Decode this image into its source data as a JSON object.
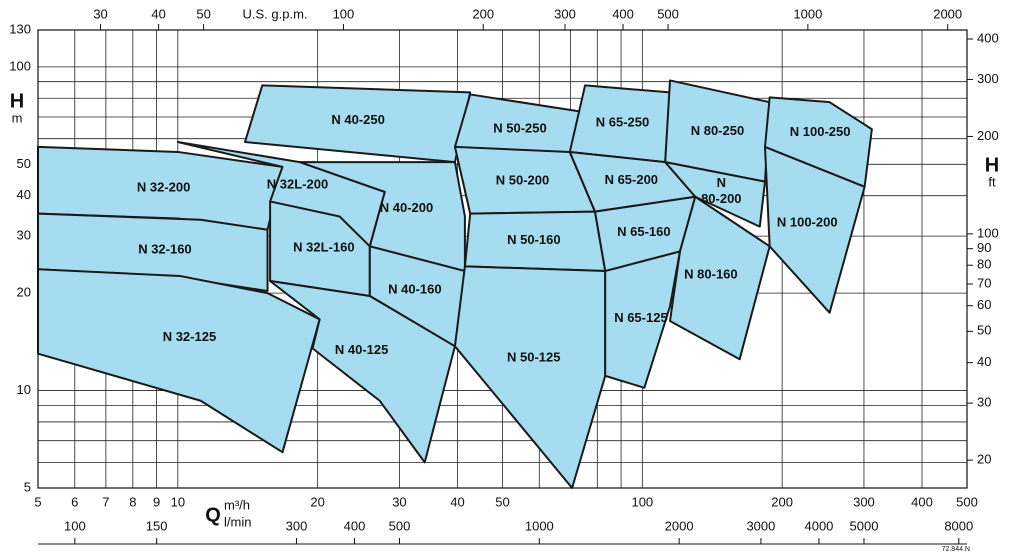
{
  "chart_data": {
    "type": "region",
    "xlabel": "Q",
    "xunit": "m³/h",
    "ylabel": "H",
    "yunit": "m",
    "y2label": "H",
    "y2unit": "ft",
    "log": true,
    "grid": true,
    "color": "#a6dcef",
    "xlim": [
      5,
      500
    ],
    "ylim": [
      5,
      130
    ],
    "xticks": [
      5,
      6,
      7,
      8,
      9,
      10,
      20,
      30,
      40,
      50,
      100,
      200,
      300,
      400,
      500
    ],
    "xminor": [
      60,
      70,
      80,
      90
    ],
    "yticks": [
      5,
      10,
      20,
      30,
      40,
      50,
      100,
      130
    ],
    "yminor": [
      6,
      7,
      8,
      9,
      60,
      70,
      80,
      90
    ],
    "y2lim": [
      16.4,
      426.5
    ],
    "y2ticks": [
      20,
      30,
      40,
      50,
      60,
      70,
      80,
      90,
      100,
      200,
      300,
      400
    ],
    "top_axis": {
      "label": "U.S. g.p.m.",
      "xlim": [
        22.0,
        2201
      ],
      "xticks": [
        30,
        40,
        50,
        100,
        200,
        300,
        400,
        500,
        1000,
        2000
      ]
    },
    "bottom2_axis": {
      "label": "l/min",
      "xlim": [
        83.3,
        8333
      ],
      "xticks": [
        100,
        150,
        300,
        400,
        500,
        1000,
        2000,
        3000,
        4000,
        5000,
        8000
      ]
    },
    "footnote": "72.844.N",
    "series": [
      {
        "name": "N 40-250",
        "x": [
          15.2,
          42.6,
          39.5,
          13.95
        ],
        "values": [
          87.7,
          83.4,
          50.8,
          58.6
        ]
      },
      {
        "name": "N 50-250",
        "x": [
          42.6,
          75.3,
          69.8,
          39.5
        ],
        "values": [
          82.2,
          72.4,
          50.8,
          56.6
        ]
      },
      {
        "name": "N 65-250",
        "x": [
          75.3,
          114.7,
          112,
          69.8
        ],
        "values": [
          87.7,
          83.4,
          50.8,
          54.6
        ]
      },
      {
        "name": "N 80-250",
        "x": [
          114.7,
          188,
          183.7,
          112
        ],
        "values": [
          90.8,
          77.8,
          44.2,
          50.8
        ]
      },
      {
        "name": "N 100-250",
        "x": [
          188,
          253,
          312,
          301,
          183.7
        ],
        "values": [
          80.5,
          77.8,
          64.2,
          42.6,
          56.6
        ]
      },
      {
        "name": "N 32-200",
        "x": [
          5,
          10,
          16.8,
          15.6,
          10,
          5
        ],
        "values": [
          56.6,
          54.6,
          49.1,
          31.4,
          34.0,
          35.2
        ]
      },
      {
        "name": "N 32L-200",
        "x": [
          10,
          18.3,
          27.9,
          25.9,
          15.8,
          16.8
        ],
        "values": [
          58.6,
          50.8,
          41.1,
          27.9,
          38.4,
          49.1
        ]
      },
      {
        "name": "N 40-200",
        "x": [
          18.3,
          39.5,
          41.5,
          41.5,
          25.9,
          27.9
        ],
        "values": [
          50.8,
          50.8,
          34.5,
          23.4,
          27.9,
          41.1
        ]
      },
      {
        "name": "N 50-200",
        "x": [
          39.5,
          69.8,
          79.1,
          42.6
        ],
        "values": [
          56.6,
          54.6,
          35.7,
          35.2
        ]
      },
      {
        "name": "N 65-200",
        "x": [
          69.8,
          112,
          130,
          79.1
        ],
        "values": [
          54.6,
          50.8,
          39.7,
          35.7
        ]
      },
      {
        "name": "N\n80-200",
        "x": [
          112,
          183.7,
          179,
          130
        ],
        "values": [
          50.8,
          44.2,
          32.1,
          39.7
        ]
      },
      {
        "name": "N 100-200",
        "x": [
          183.7,
          301,
          253,
          188
        ],
        "values": [
          56.6,
          42.6,
          17.4,
          27.9
        ]
      },
      {
        "name": "N 32-160",
        "x": [
          5,
          11.2,
          15.6,
          15.6,
          10,
          5
        ],
        "values": [
          35.2,
          33.7,
          31.4,
          20.3,
          22.4,
          23.7
        ]
      },
      {
        "name": "N 32L-160",
        "x": [
          15.8,
          22.3,
          25.9,
          25.9,
          15.8
        ],
        "values": [
          38.4,
          34.5,
          27.9,
          19.6,
          21.8
        ]
      },
      {
        "name": "N 40-160",
        "x": [
          25.9,
          41.5,
          39.5,
          25.9
        ],
        "values": [
          27.9,
          23.4,
          13.7,
          19.6
        ]
      },
      {
        "name": "N 50-160",
        "x": [
          42.6,
          79.1,
          83.2,
          41.5
        ],
        "values": [
          35.2,
          35.7,
          23.4,
          24.2
        ]
      },
      {
        "name": "N 65-160",
        "x": [
          79.1,
          130,
          120.5,
          83.2
        ],
        "values": [
          35.7,
          39.7,
          26.9,
          23.4
        ]
      },
      {
        "name": "N 80-160",
        "x": [
          130,
          188,
          162,
          114.7,
          120.5
        ],
        "values": [
          39.7,
          27.9,
          12.5,
          16.4,
          26.9
        ]
      },
      {
        "name": "N 32-125",
        "x": [
          5,
          10.1,
          15.6,
          20.2,
          16.8,
          11.2,
          5
        ],
        "values": [
          23.7,
          22.6,
          20.0,
          16.6,
          6.45,
          9.3,
          13.0
        ]
      },
      {
        "name": "N 40-125",
        "x": [
          15.8,
          25.9,
          39.5,
          34.0,
          27.2,
          19.5,
          20.2
        ],
        "values": [
          21.8,
          19.6,
          13.7,
          6.0,
          9.3,
          13.5,
          16.6
        ]
      },
      {
        "name": "N 50-125",
        "x": [
          41.5,
          83.2,
          83.2,
          70.6,
          49.4,
          39.5
        ],
        "values": [
          24.2,
          23.4,
          11.1,
          5.0,
          9.3,
          13.7
        ]
      },
      {
        "name": "N 65-125",
        "x": [
          83.2,
          120.5,
          114.7,
          101,
          83.2
        ],
        "values": [
          23.4,
          26.9,
          18.2,
          10.2,
          11.1
        ]
      }
    ]
  }
}
